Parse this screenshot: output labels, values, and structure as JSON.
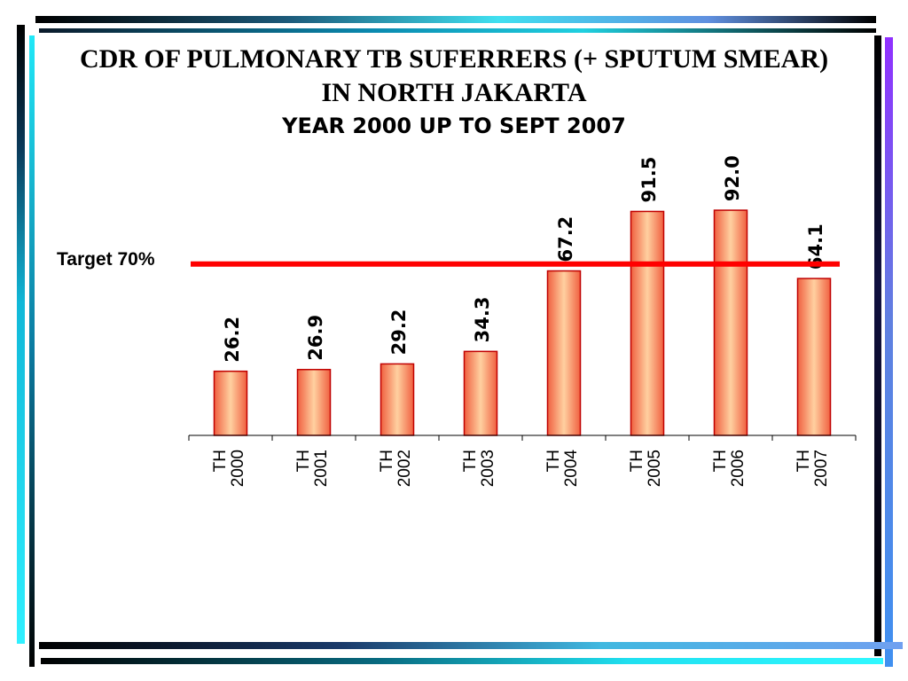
{
  "slide": {
    "title_line1": "CDR OF PULMONARY TB SUFERRERS (+ SPUTUM SMEAR)",
    "title_line2": "IN NORTH JAKARTA",
    "subtitle": "YEAR 2000 UP TO  SEPT 2007",
    "target_label": "Target 70%"
  },
  "chart_data": {
    "type": "bar",
    "categories": [
      [
        "TH",
        "2000"
      ],
      [
        "TH",
        "2001"
      ],
      [
        "TH",
        "2002"
      ],
      [
        "TH",
        "2003"
      ],
      [
        "TH",
        "2004"
      ],
      [
        "TH",
        "2005"
      ],
      [
        "TH",
        "2006"
      ],
      [
        "TH",
        "2007"
      ]
    ],
    "values": [
      26.2,
      26.9,
      29.2,
      34.3,
      67.2,
      91.5,
      92.0,
      64.1
    ],
    "value_labels": [
      "26.2",
      "26.9",
      "29.2",
      "34.3",
      "67.2",
      "91.5",
      "92.0",
      "64.1"
    ],
    "target_line": {
      "label": "Target 70%",
      "value": 70,
      "color": "#ff0000"
    },
    "ylim": [
      0,
      100
    ],
    "grid": false,
    "legend": "none",
    "bar_color": "#ffb080",
    "bar_edge_color": "#c00000"
  }
}
